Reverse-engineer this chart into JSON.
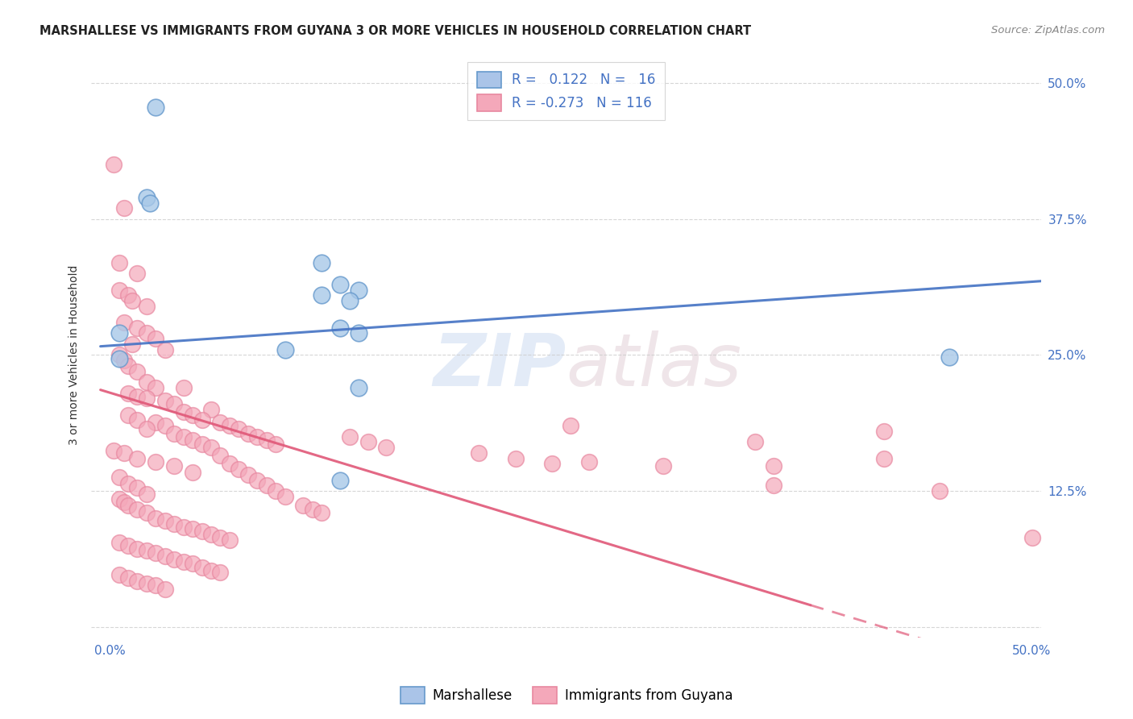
{
  "title": "MARSHALLESE VS IMMIGRANTS FROM GUYANA 3 OR MORE VEHICLES IN HOUSEHOLD CORRELATION CHART",
  "source": "Source: ZipAtlas.com",
  "ylabel": "3 or more Vehicles in Household",
  "xlim": [
    0.0,
    0.5
  ],
  "ylim": [
    0.0,
    0.5
  ],
  "yticks": [
    0.0,
    0.125,
    0.25,
    0.375,
    0.5
  ],
  "ytick_labels": [
    "",
    "12.5%",
    "25.0%",
    "37.5%",
    "50.0%"
  ],
  "legend_entries": [
    {
      "color": "#aac4e8",
      "R": "0.122",
      "N": "16",
      "label": "Marshallese"
    },
    {
      "color": "#f4a7b9",
      "R": "-0.273",
      "N": "116",
      "label": "Immigrants from Guyana"
    }
  ],
  "blue_scatter_color": "#a8c8e8",
  "pink_scatter_color": "#f4a8ba",
  "blue_line_color": "#4472C4",
  "pink_line_color": "#e05878",
  "blue_points": [
    [
      0.025,
      0.478
    ],
    [
      0.02,
      0.395
    ],
    [
      0.022,
      0.39
    ],
    [
      0.115,
      0.335
    ],
    [
      0.125,
      0.315
    ],
    [
      0.135,
      0.31
    ],
    [
      0.115,
      0.305
    ],
    [
      0.13,
      0.3
    ],
    [
      0.005,
      0.27
    ],
    [
      0.125,
      0.275
    ],
    [
      0.135,
      0.27
    ],
    [
      0.095,
      0.255
    ],
    [
      0.135,
      0.22
    ],
    [
      0.005,
      0.247
    ],
    [
      0.125,
      0.135
    ],
    [
      0.455,
      0.248
    ]
  ],
  "pink_points": [
    [
      0.002,
      0.425
    ],
    [
      0.008,
      0.385
    ],
    [
      0.005,
      0.335
    ],
    [
      0.015,
      0.325
    ],
    [
      0.005,
      0.31
    ],
    [
      0.01,
      0.305
    ],
    [
      0.012,
      0.3
    ],
    [
      0.02,
      0.295
    ],
    [
      0.008,
      0.28
    ],
    [
      0.015,
      0.275
    ],
    [
      0.02,
      0.27
    ],
    [
      0.025,
      0.265
    ],
    [
      0.012,
      0.26
    ],
    [
      0.03,
      0.255
    ],
    [
      0.005,
      0.25
    ],
    [
      0.008,
      0.245
    ],
    [
      0.01,
      0.24
    ],
    [
      0.015,
      0.235
    ],
    [
      0.02,
      0.225
    ],
    [
      0.025,
      0.22
    ],
    [
      0.04,
      0.22
    ],
    [
      0.01,
      0.215
    ],
    [
      0.015,
      0.212
    ],
    [
      0.02,
      0.21
    ],
    [
      0.03,
      0.208
    ],
    [
      0.035,
      0.205
    ],
    [
      0.055,
      0.2
    ],
    [
      0.04,
      0.198
    ],
    [
      0.01,
      0.195
    ],
    [
      0.045,
      0.195
    ],
    [
      0.015,
      0.19
    ],
    [
      0.05,
      0.19
    ],
    [
      0.025,
      0.188
    ],
    [
      0.06,
      0.188
    ],
    [
      0.03,
      0.185
    ],
    [
      0.065,
      0.185
    ],
    [
      0.02,
      0.182
    ],
    [
      0.07,
      0.182
    ],
    [
      0.035,
      0.178
    ],
    [
      0.075,
      0.178
    ],
    [
      0.04,
      0.175
    ],
    [
      0.08,
      0.175
    ],
    [
      0.045,
      0.172
    ],
    [
      0.085,
      0.172
    ],
    [
      0.05,
      0.168
    ],
    [
      0.09,
      0.168
    ],
    [
      0.055,
      0.165
    ],
    [
      0.002,
      0.162
    ],
    [
      0.008,
      0.16
    ],
    [
      0.06,
      0.158
    ],
    [
      0.015,
      0.155
    ],
    [
      0.025,
      0.152
    ],
    [
      0.065,
      0.15
    ],
    [
      0.035,
      0.148
    ],
    [
      0.07,
      0.145
    ],
    [
      0.045,
      0.142
    ],
    [
      0.075,
      0.14
    ],
    [
      0.005,
      0.138
    ],
    [
      0.08,
      0.135
    ],
    [
      0.01,
      0.132
    ],
    [
      0.085,
      0.13
    ],
    [
      0.015,
      0.128
    ],
    [
      0.09,
      0.125
    ],
    [
      0.02,
      0.122
    ],
    [
      0.095,
      0.12
    ],
    [
      0.005,
      0.118
    ],
    [
      0.008,
      0.115
    ],
    [
      0.01,
      0.112
    ],
    [
      0.105,
      0.112
    ],
    [
      0.015,
      0.108
    ],
    [
      0.11,
      0.108
    ],
    [
      0.02,
      0.105
    ],
    [
      0.115,
      0.105
    ],
    [
      0.025,
      0.1
    ],
    [
      0.03,
      0.098
    ],
    [
      0.035,
      0.095
    ],
    [
      0.04,
      0.092
    ],
    [
      0.045,
      0.09
    ],
    [
      0.05,
      0.088
    ],
    [
      0.055,
      0.085
    ],
    [
      0.06,
      0.082
    ],
    [
      0.065,
      0.08
    ],
    [
      0.005,
      0.078
    ],
    [
      0.01,
      0.075
    ],
    [
      0.015,
      0.072
    ],
    [
      0.02,
      0.07
    ],
    [
      0.025,
      0.068
    ],
    [
      0.03,
      0.065
    ],
    [
      0.035,
      0.062
    ],
    [
      0.04,
      0.06
    ],
    [
      0.045,
      0.058
    ],
    [
      0.05,
      0.055
    ],
    [
      0.055,
      0.052
    ],
    [
      0.06,
      0.05
    ],
    [
      0.005,
      0.048
    ],
    [
      0.01,
      0.045
    ],
    [
      0.015,
      0.042
    ],
    [
      0.02,
      0.04
    ],
    [
      0.025,
      0.038
    ],
    [
      0.03,
      0.035
    ],
    [
      0.13,
      0.175
    ],
    [
      0.14,
      0.17
    ],
    [
      0.15,
      0.165
    ],
    [
      0.2,
      0.16
    ],
    [
      0.22,
      0.155
    ],
    [
      0.24,
      0.15
    ],
    [
      0.25,
      0.185
    ],
    [
      0.26,
      0.152
    ],
    [
      0.3,
      0.148
    ],
    [
      0.35,
      0.17
    ],
    [
      0.36,
      0.13
    ],
    [
      0.42,
      0.18
    ],
    [
      0.45,
      0.125
    ],
    [
      0.36,
      0.148
    ],
    [
      0.42,
      0.155
    ],
    [
      0.5,
      0.082
    ]
  ]
}
